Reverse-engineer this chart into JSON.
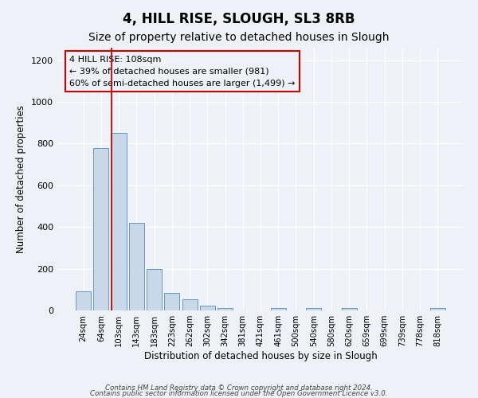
{
  "title": "4, HILL RISE, SLOUGH, SL3 8RB",
  "subtitle": "Size of property relative to detached houses in Slough",
  "xlabel": "Distribution of detached houses by size in Slough",
  "ylabel": "Number of detached properties",
  "bar_labels": [
    "24sqm",
    "64sqm",
    "103sqm",
    "143sqm",
    "183sqm",
    "223sqm",
    "262sqm",
    "302sqm",
    "342sqm",
    "381sqm",
    "421sqm",
    "461sqm",
    "500sqm",
    "540sqm",
    "580sqm",
    "620sqm",
    "659sqm",
    "699sqm",
    "739sqm",
    "778sqm",
    "818sqm"
  ],
  "bar_values": [
    90,
    780,
    850,
    420,
    200,
    85,
    55,
    22,
    10,
    0,
    0,
    10,
    0,
    12,
    0,
    10,
    0,
    0,
    0,
    0,
    10
  ],
  "bar_color": "#c8d8e8",
  "bar_edge_color": "#6699bb",
  "vline_color": "#cc0000",
  "annotation_line1": "4 HILL RISE: 108sqm",
  "annotation_line2": "← 39% of detached houses are smaller (981)",
  "annotation_line3": "60% of semi-detached houses are larger (1,499) →",
  "annotation_box_edge": "#cc0000",
  "ylim": [
    0,
    1260
  ],
  "yticks": [
    0,
    200,
    400,
    600,
    800,
    1000,
    1200
  ],
  "background_color": "#eef2f7",
  "footer_line1": "Contains HM Land Registry data © Crown copyright and database right 2024.",
  "footer_line2": "Contains public sector information licensed under the Open Government Licence v3.0.",
  "title_fontsize": 12,
  "subtitle_fontsize": 10
}
